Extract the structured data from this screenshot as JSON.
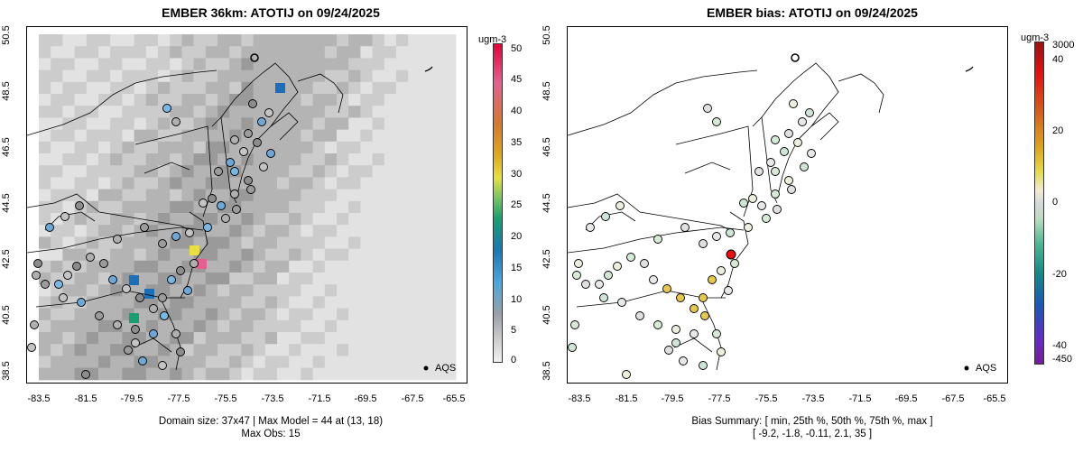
{
  "left": {
    "title": "EMBER 36km: ATOTIJ on 09/24/2025",
    "footer_line1": "Domain size: 37x47 | Max Model = 44 at (13, 18)",
    "footer_line2": "Max Obs: 15",
    "legend_label": "AQS",
    "colorbar_title": "ugm-3",
    "colorbar_labels": [
      "50",
      "45",
      "40",
      "35",
      "30",
      "25",
      "20",
      "15",
      "10",
      "5",
      "0"
    ]
  },
  "right": {
    "title": "EMBER bias: ATOTIJ on 09/24/2025",
    "footer_line1": "Bias Summary: [ min, 25th %, 50th %, 75th %, max ]",
    "footer_line2": "[ -9.2,  -1.8,  -0.11,  2.1,  35 ]",
    "legend_label": "AQS",
    "colorbar_title": "ugm-3",
    "colorbar_labels": [
      "3000",
      "40",
      "20",
      "0",
      "-20",
      "-40",
      "-450"
    ]
  },
  "axes": {
    "x_ticks": [
      "-83.5",
      "-81.5",
      "-79.5",
      "-77.5",
      "-75.5",
      "-73.5",
      "-71.5",
      "-69.5",
      "-67.5",
      "-65.5"
    ],
    "y_ticks": [
      "50.5",
      "48.5",
      "46.5",
      "44.5",
      "42.5",
      "40.5",
      "38.5"
    ]
  }
}
